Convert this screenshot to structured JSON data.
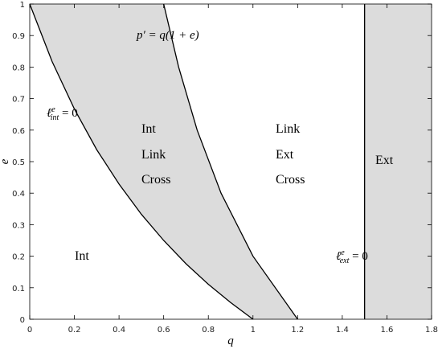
{
  "chart_data": {
    "type": "line",
    "xlabel": "q",
    "ylabel": "e",
    "xlim": [
      0,
      1.8
    ],
    "ylim": [
      0,
      1
    ],
    "xticks": [
      0,
      0.2,
      0.4,
      0.6,
      0.8,
      1,
      1.2,
      1.4,
      1.6,
      1.8
    ],
    "yticks": [
      0,
      0.1,
      0.2,
      0.3,
      0.4,
      0.5,
      0.6,
      0.7,
      0.8,
      0.9,
      1
    ],
    "grid": false,
    "series": [
      {
        "color": "#000000",
        "x": [
          0,
          0.1,
          0.2,
          0.3,
          0.4,
          0.5,
          0.6,
          0.7,
          0.8,
          0.9,
          1
        ],
        "values": [
          1,
          0.818,
          0.667,
          0.538,
          0.429,
          0.333,
          0.25,
          0.176,
          0.111,
          0.053,
          0
        ]
      },
      {
        "color": "#000000",
        "x": [
          0.6,
          0.667,
          0.75,
          0.857,
          1,
          1.2
        ],
        "values": [
          1,
          0.8,
          0.6,
          0.4,
          0.2,
          0
        ],
        "fill": "#dcdcdc"
      },
      {
        "color": "#000000",
        "x": [
          1.5,
          1.5
        ],
        "values": [
          0,
          1
        ],
        "fill": "#dcdcdc"
      }
    ],
    "annotations": [
      "p′ = q(1 + e)",
      "Int",
      "Link",
      "Cross",
      "Link",
      "Ext",
      "Cross",
      "Int",
      "Ext"
    ],
    "curve_labels": [
      {
        "base": "ℓ",
        "sup": "e",
        "sub": "int",
        "rest": " = 0"
      },
      {
        "base": "ℓ",
        "sup": "e",
        "sub": "ext",
        "rest": " = 0"
      }
    ]
  }
}
